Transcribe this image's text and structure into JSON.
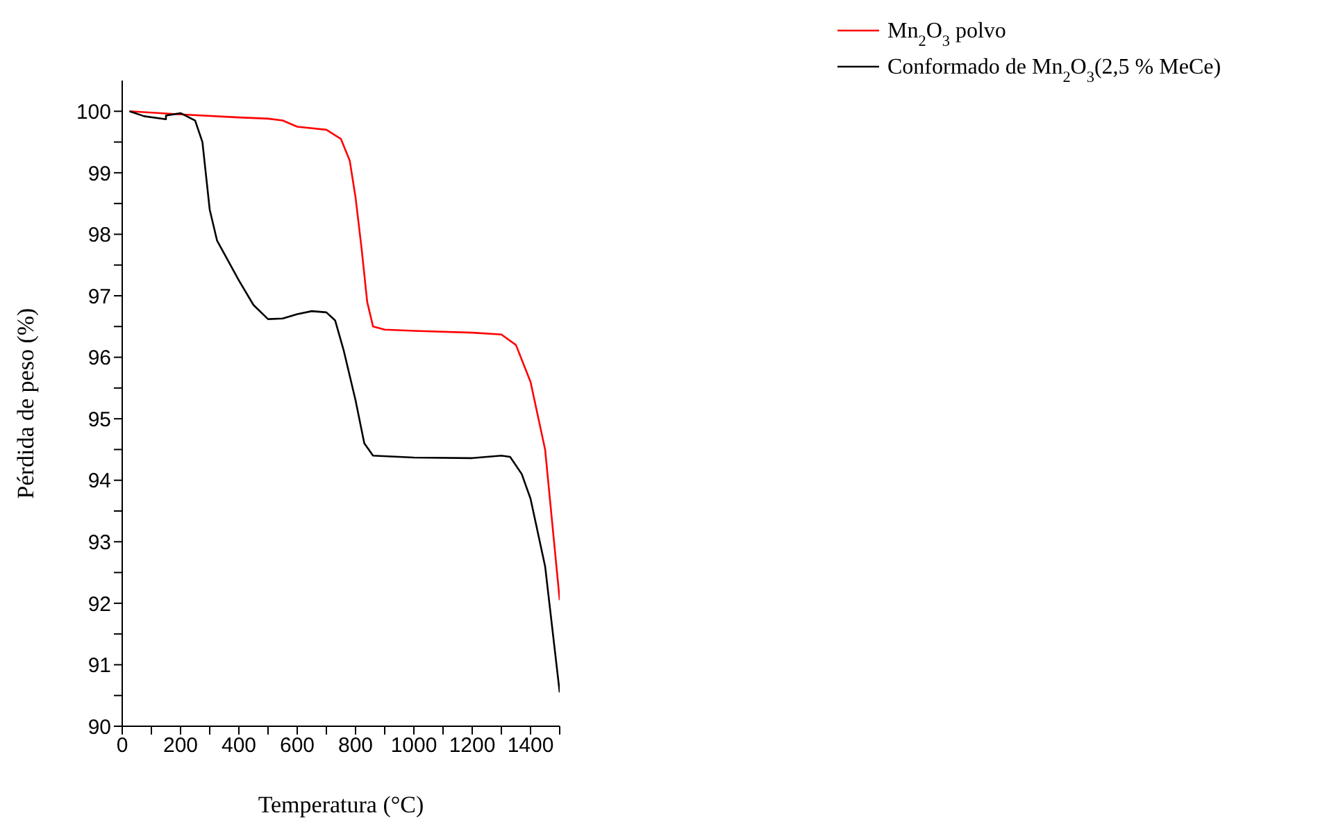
{
  "chart_data": {
    "type": "line",
    "xlabel": "Temperatura (°C)",
    "ylabel": "Pérdida de peso (%)",
    "xlim": [
      0,
      1500
    ],
    "ylim": [
      90,
      100.5
    ],
    "xticks": [
      0,
      {
        "value": 100,
        "label": null
      },
      200,
      {
        "value": 300,
        "label": null
      },
      400,
      {
        "value": 500,
        "label": null
      },
      600,
      {
        "value": 700,
        "label": null
      },
      800,
      {
        "value": 900,
        "label": null
      },
      1000,
      {
        "value": 1100,
        "label": null
      },
      1200,
      {
        "value": 1300,
        "label": null
      },
      1400,
      {
        "value": 1500,
        "label": null
      }
    ],
    "yticks": [
      90,
      {
        "value": 90.5,
        "label": null
      },
      91,
      {
        "value": 91.5,
        "label": null
      },
      92,
      {
        "value": 92.5,
        "label": null
      },
      93,
      {
        "value": 93.5,
        "label": null
      },
      94,
      {
        "value": 94.5,
        "label": null
      },
      95,
      {
        "value": 95.5,
        "label": null
      },
      96,
      {
        "value": 96.5,
        "label": null
      },
      97,
      {
        "value": 97.5,
        "label": null
      },
      98,
      {
        "value": 98.5,
        "label": null
      },
      99,
      {
        "value": 99.5,
        "label": null
      },
      100
    ],
    "grid": false,
    "legend": "top right",
    "marker": "none",
    "line_style": "solid",
    "series": [
      {
        "name": "Mn$_{2}$O$_{3}$ polvo",
        "color": "#ff0000",
        "x": [
          25,
          200,
          400,
          500,
          550,
          600,
          700,
          750,
          780,
          800,
          820,
          840,
          860,
          900,
          1000,
          1200,
          1300,
          1350,
          1400,
          1450,
          1500
        ],
        "values": [
          100,
          99.95,
          99.9,
          99.88,
          99.85,
          99.75,
          99.7,
          99.55,
          99.2,
          98.6,
          97.8,
          96.9,
          96.5,
          96.45,
          96.43,
          96.4,
          96.37,
          96.2,
          95.6,
          94.5,
          92.05
        ]
      },
      {
        "name": "Conformado de Mn$_{2}$O$_{3}$(2,5 % MeCe)",
        "color": "#000000",
        "x": [
          25,
          75,
          150,
          150,
          200,
          250,
          275,
          300,
          325,
          400,
          450,
          500,
          550,
          600,
          650,
          700,
          730,
          760,
          800,
          830,
          860,
          1000,
          1200,
          1300,
          1330,
          1370,
          1400,
          1450,
          1500
        ],
        "values": [
          100,
          99.92,
          99.87,
          99.93,
          99.97,
          99.85,
          99.5,
          98.4,
          97.9,
          97.25,
          96.85,
          96.62,
          96.63,
          96.7,
          96.75,
          96.73,
          96.6,
          96.1,
          95.3,
          94.6,
          94.4,
          94.37,
          94.36,
          94.4,
          94.38,
          94.1,
          93.7,
          92.6,
          90.55
        ]
      }
    ]
  }
}
